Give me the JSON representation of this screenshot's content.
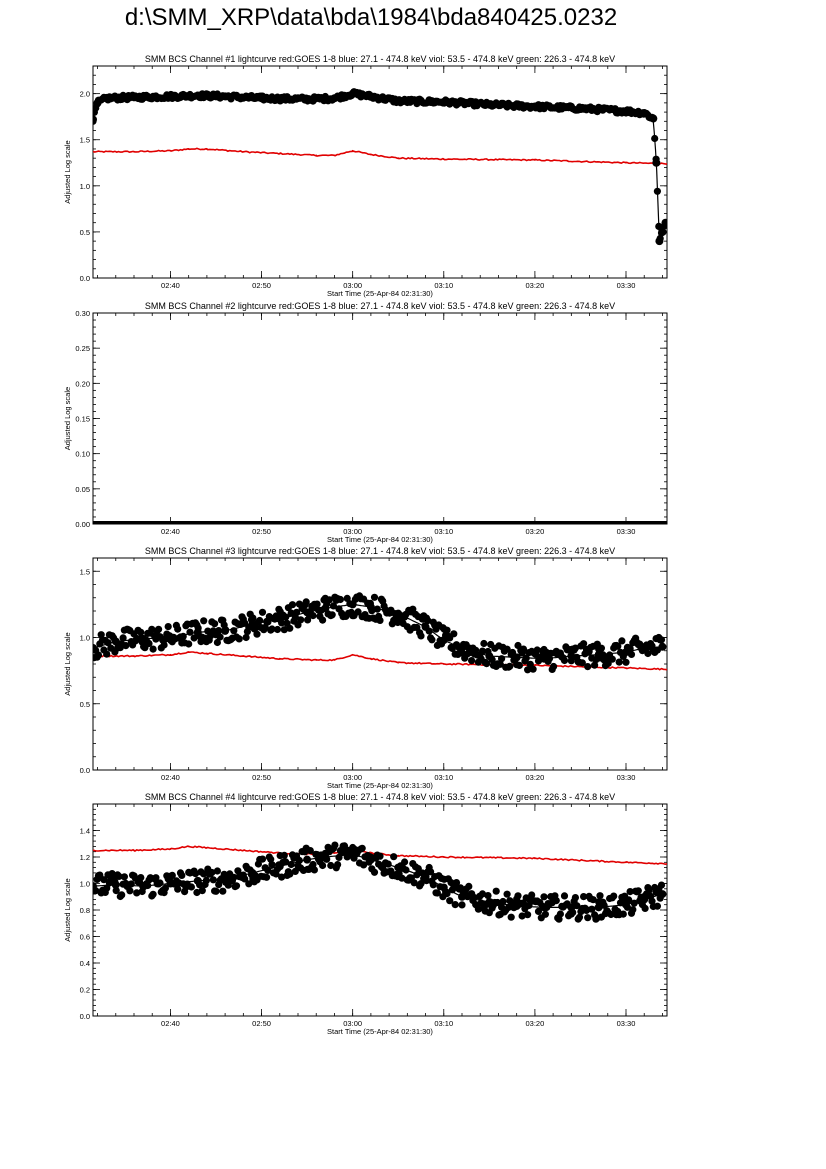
{
  "page": {
    "title": "d:\\SMM_XRP\\data\\bda\\1984\\bda840425.0232"
  },
  "colors": {
    "goes": "#e00000",
    "bcs": "#000000"
  },
  "chart_data": [
    {
      "type": "scatter",
      "title": "SMM BCS Channel #1 lightcurve  red:GOES 1-8  blue: 27.1 - 474.8 keV  viol: 53.5 - 474.8 keV  green: 226.3 - 474.8 keV",
      "xlabel": "Start Time (25-Apr-84 02:31:30)",
      "ylabel": "Adjusted Log scale",
      "xlim": [
        "02:31:30",
        "03:34:30"
      ],
      "ylim": [
        0.0,
        2.3
      ],
      "xticks": [
        "02:40",
        "02:50",
        "03:00",
        "03:10",
        "03:20",
        "03:30"
      ],
      "yticks": [
        "0.0",
        "0.5",
        "1.0",
        "1.5",
        "2.0"
      ],
      "series": [
        {
          "style": "line",
          "color": "#e00000",
          "x": [
            "02:31:30",
            "02:36:00",
            "02:40:00",
            "02:42:00",
            "02:44:00",
            "02:48:00",
            "02:52:00",
            "02:56:00",
            "02:58:00",
            "03:00:00",
            "03:02:00",
            "03:05:00",
            "03:10:00",
            "03:20:00",
            "03:30:00",
            "03:34:30"
          ],
          "values": [
            1.37,
            1.37,
            1.38,
            1.4,
            1.4,
            1.37,
            1.35,
            1.33,
            1.33,
            1.38,
            1.34,
            1.3,
            1.29,
            1.28,
            1.25,
            1.24
          ]
        },
        {
          "style": "points",
          "color": "#000000",
          "x": [
            "02:31:30",
            "02:32:00",
            "02:33:00",
            "02:36:00",
            "02:40:00",
            "02:43:00",
            "02:46:00",
            "02:50:00",
            "02:55:00",
            "02:58:00",
            "03:00:00",
            "03:02:00",
            "03:05:00",
            "03:10:00",
            "03:15:00",
            "03:20:00",
            "03:25:00",
            "03:30:00",
            "03:32:00",
            "03:33:00",
            "03:33:20",
            "03:33:40",
            "03:34:00",
            "03:34:20"
          ],
          "values": [
            1.72,
            1.9,
            1.95,
            1.96,
            1.97,
            1.98,
            1.97,
            1.95,
            1.94,
            1.95,
            2.0,
            1.97,
            1.92,
            1.91,
            1.88,
            1.86,
            1.84,
            1.81,
            1.79,
            1.73,
            1.25,
            0.4,
            0.5,
            0.6
          ]
        }
      ]
    },
    {
      "type": "scatter",
      "title": "SMM BCS Channel #2 lightcurve  red:GOES 1-8  blue: 27.1 - 474.8 keV  viol: 53.5 - 474.8 keV  green: 226.3 - 474.8 keV",
      "xlabel": "Start Time (25-Apr-84 02:31:30)",
      "ylabel": "Adjusted Log scale",
      "xlim": [
        "02:31:30",
        "03:34:30"
      ],
      "ylim": [
        0.0,
        0.3
      ],
      "xticks": [
        "02:40",
        "02:50",
        "03:00",
        "03:10",
        "03:20",
        "03:30"
      ],
      "yticks": [
        "0.00",
        "0.05",
        "0.10",
        "0.15",
        "0.20",
        "0.25",
        "0.30"
      ],
      "series": [
        {
          "style": "points",
          "color": "#000000",
          "x": [
            "02:31:30",
            "03:34:30"
          ],
          "values": [
            0.0,
            0.0
          ]
        }
      ]
    },
    {
      "type": "scatter",
      "title": "SMM BCS Channel #3 lightcurve  red:GOES 1-8  blue: 27.1 - 474.8 keV  viol: 53.5 - 474.8 keV  green: 226.3 - 474.8 keV",
      "xlabel": "Start Time (25-Apr-84 02:31:30)",
      "ylabel": "Adjusted Log scale",
      "xlim": [
        "02:31:30",
        "03:34:30"
      ],
      "ylim": [
        0.0,
        1.6
      ],
      "xticks": [
        "02:40",
        "02:50",
        "03:00",
        "03:10",
        "03:20",
        "03:30"
      ],
      "yticks": [
        "0.0",
        "0.5",
        "1.0",
        "1.5"
      ],
      "series": [
        {
          "style": "line",
          "color": "#e00000",
          "x": [
            "02:31:30",
            "02:36:00",
            "02:40:00",
            "02:42:00",
            "02:44:00",
            "02:48:00",
            "02:52:00",
            "02:56:00",
            "02:58:00",
            "03:00:00",
            "03:02:00",
            "03:05:00",
            "03:10:00",
            "03:20:00",
            "03:30:00",
            "03:34:30"
          ],
          "values": [
            0.86,
            0.86,
            0.87,
            0.89,
            0.88,
            0.86,
            0.84,
            0.83,
            0.83,
            0.87,
            0.84,
            0.81,
            0.8,
            0.79,
            0.77,
            0.76
          ]
        },
        {
          "style": "points",
          "color": "#000000",
          "x": [
            "02:31:30",
            "02:34:00",
            "02:37:00",
            "02:40:00",
            "02:43:00",
            "02:46:00",
            "02:49:00",
            "02:52:00",
            "02:55:00",
            "02:57:00",
            "03:00:00",
            "03:02:00",
            "03:05:00",
            "03:08:00",
            "03:10:00",
            "03:12:00",
            "03:15:00",
            "03:18:00",
            "03:21:00",
            "03:24:00",
            "03:27:00",
            "03:30:00",
            "03:32:00",
            "03:34:00"
          ],
          "values": [
            0.92,
            0.97,
            0.99,
            1.0,
            1.04,
            1.05,
            1.1,
            1.14,
            1.19,
            1.22,
            1.25,
            1.23,
            1.18,
            1.08,
            0.98,
            0.92,
            0.86,
            0.85,
            0.84,
            0.86,
            0.87,
            0.89,
            0.92,
            0.93
          ]
        }
      ]
    },
    {
      "type": "scatter",
      "title": "SMM BCS Channel #4 lightcurve  red:GOES 1-8  blue: 27.1 - 474.8 keV  viol: 53.5 - 474.8 keV  green: 226.3 - 474.8 keV",
      "xlabel": "Start Time (25-Apr-84 02:31:30)",
      "ylabel": "Adjusted Log scale",
      "xlim": [
        "02:31:30",
        "03:34:30"
      ],
      "ylim": [
        0.0,
        1.6
      ],
      "xticks": [
        "02:40",
        "02:50",
        "03:00",
        "03:10",
        "03:20",
        "03:30"
      ],
      "yticks": [
        "0.0",
        "0.2",
        "0.4",
        "0.6",
        "0.8",
        "1.0",
        "1.2",
        "1.4"
      ],
      "series": [
        {
          "style": "line",
          "color": "#e00000",
          "x": [
            "02:31:30",
            "02:36:00",
            "02:40:00",
            "02:42:00",
            "02:44:00",
            "02:48:00",
            "02:52:00",
            "02:56:00",
            "02:58:00",
            "03:00:00",
            "03:02:00",
            "03:05:00",
            "03:10:00",
            "03:20:00",
            "03:30:00",
            "03:34:30"
          ],
          "values": [
            1.25,
            1.25,
            1.26,
            1.28,
            1.27,
            1.25,
            1.23,
            1.22,
            1.23,
            1.26,
            1.23,
            1.21,
            1.2,
            1.19,
            1.16,
            1.15
          ]
        },
        {
          "style": "points",
          "color": "#000000",
          "x": [
            "02:31:30",
            "02:34:00",
            "02:37:00",
            "02:40:00",
            "02:43:00",
            "02:46:00",
            "02:49:00",
            "02:52:00",
            "02:55:00",
            "02:57:00",
            "03:00:00",
            "03:02:00",
            "03:05:00",
            "03:08:00",
            "03:10:00",
            "03:12:00",
            "03:15:00",
            "03:18:00",
            "03:21:00",
            "03:24:00",
            "03:27:00",
            "03:30:00",
            "03:32:00",
            "03:34:00"
          ],
          "values": [
            0.98,
            0.99,
            0.98,
            1.0,
            1.02,
            1.03,
            1.08,
            1.13,
            1.18,
            1.2,
            1.22,
            1.18,
            1.12,
            1.05,
            0.97,
            0.9,
            0.86,
            0.83,
            0.82,
            0.82,
            0.82,
            0.84,
            0.88,
            0.92
          ]
        }
      ]
    }
  ]
}
